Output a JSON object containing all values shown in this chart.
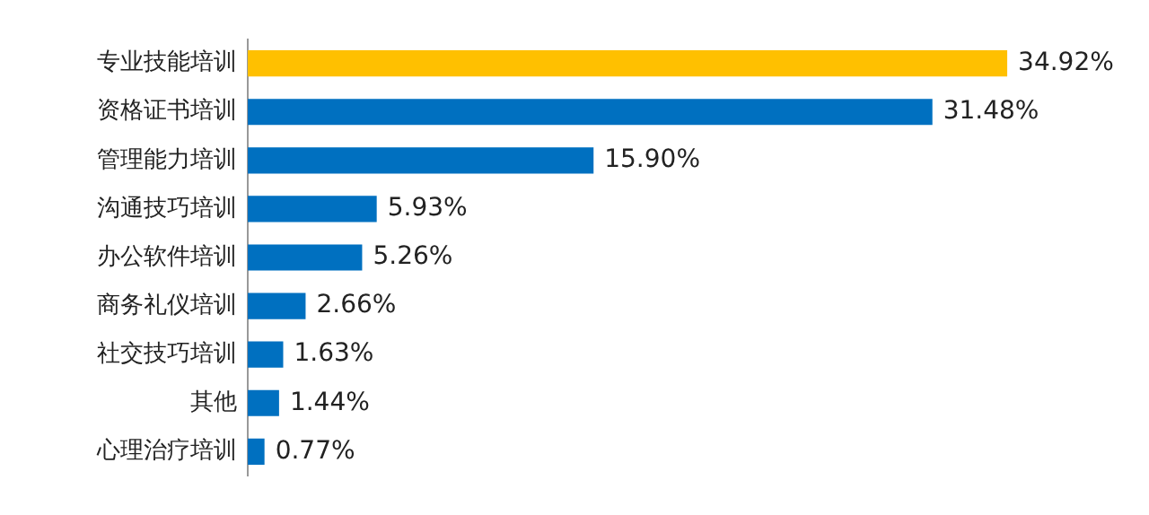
{
  "chart_data": {
    "type": "bar",
    "orientation": "horizontal",
    "categories": [
      "专业技能培训",
      "资格证书培训",
      "管理能力培训",
      "沟通技巧培训",
      "办公软件培训",
      "商务礼仪培训",
      "社交技巧培训",
      "其他",
      "心理治疗培训"
    ],
    "values": [
      34.92,
      31.48,
      15.9,
      5.93,
      5.26,
      2.66,
      1.63,
      1.44,
      0.77
    ],
    "colors": [
      "#ffc000",
      "#0070c0",
      "#0070c0",
      "#0070c0",
      "#0070c0",
      "#0070c0",
      "#0070c0",
      "#0070c0",
      "#0070c0"
    ],
    "value_labels": [
      "34.92%",
      "31.48%",
      "15.90%",
      "5.93%",
      "5.26%",
      "2.66%",
      "1.63%",
      "1.44%",
      "0.77%"
    ],
    "grid": false,
    "legend": false
  }
}
